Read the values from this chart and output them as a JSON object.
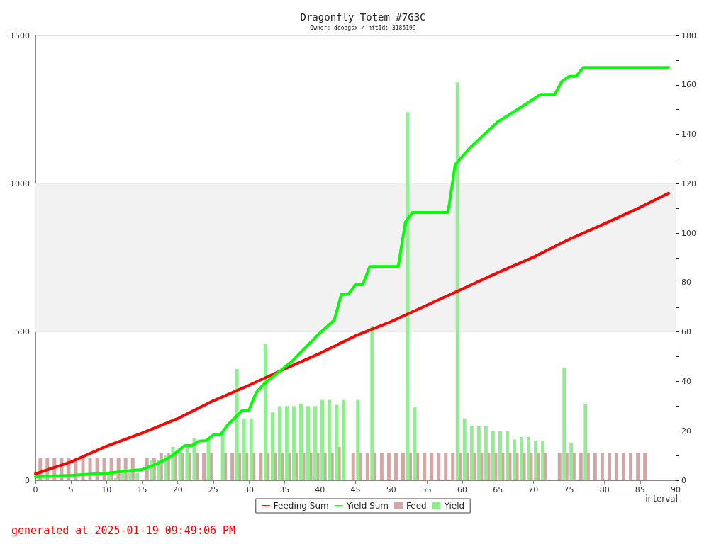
{
  "chart_data": {
    "type": "bar",
    "title": "Dragonfly Totem #7G3C",
    "subtitle": "Owner: dooogsx / nftId: 3185199",
    "xlabel": "interval",
    "x": [
      1,
      2,
      3,
      4,
      5,
      6,
      7,
      8,
      9,
      10,
      11,
      12,
      13,
      14,
      15,
      16,
      17,
      18,
      19,
      20,
      21,
      22,
      23,
      24,
      25,
      26,
      27,
      28,
      29,
      30,
      31,
      32,
      33,
      34,
      35,
      36,
      37,
      38,
      39,
      40,
      41,
      42,
      43,
      44,
      45,
      46,
      47,
      48,
      49,
      50,
      51,
      52,
      53,
      54,
      55,
      56,
      57,
      58,
      59,
      60,
      61,
      62,
      63,
      64,
      65,
      66,
      67,
      68,
      69,
      70,
      71,
      72,
      73,
      74,
      75,
      76,
      77,
      78,
      79,
      80,
      81,
      82,
      83,
      84,
      85,
      86
    ],
    "series": [
      {
        "name": "Feeding Sum",
        "type": "line",
        "color": "#ff0000",
        "x": [
          0,
          5,
          10,
          15,
          20,
          25,
          30,
          35,
          40,
          45,
          50,
          55,
          60,
          65,
          70,
          75,
          80,
          85,
          89
        ],
        "values": [
          22,
          62,
          115,
          159,
          208,
          268,
          320,
          375,
          428,
          487,
          535,
          590,
          645,
          700,
          752,
          812,
          865,
          920,
          968
        ]
      },
      {
        "name": "Yield Sum",
        "type": "line",
        "color": "#00ff00",
        "x": [
          0,
          5,
          10,
          14,
          15,
          17,
          19,
          21,
          22,
          23,
          24,
          25,
          26,
          27,
          28,
          29,
          30,
          31,
          32,
          36,
          40,
          42,
          43,
          44,
          45,
          46,
          47,
          51,
          52,
          53,
          58,
          59,
          61,
          65,
          68,
          71,
          73,
          74,
          75,
          76,
          77,
          89
        ],
        "values": [
          12,
          17,
          24,
          34,
          36,
          55,
          79,
          117,
          117,
          132,
          134,
          153,
          153,
          186,
          210,
          234,
          236,
          294,
          322,
          400,
          497,
          540,
          626,
          628,
          659,
          659,
          721,
          721,
          870,
          903,
          903,
          1064,
          1119,
          1209,
          1254,
          1301,
          1301,
          1345,
          1362,
          1362,
          1392,
          1392
        ]
      },
      {
        "name": "Feed",
        "axis": "y2",
        "color": "#d4a5a5",
        "values": [
          9,
          9,
          9,
          9,
          9,
          9,
          9,
          9,
          9,
          9,
          9,
          9,
          9,
          9,
          null,
          9,
          9,
          11,
          11,
          11,
          11,
          11,
          11,
          11,
          11,
          null,
          11,
          11,
          11,
          11,
          11,
          11,
          11,
          11,
          11,
          11,
          11,
          11,
          11,
          11,
          11,
          11,
          13.5,
          null,
          11,
          11,
          11,
          11,
          11,
          11,
          11,
          11,
          11,
          11,
          11,
          11,
          11,
          11,
          11,
          11,
          11,
          11,
          11,
          11,
          11,
          11,
          11,
          11,
          11,
          11,
          11,
          11,
          null,
          11,
          11,
          11,
          11,
          11,
          11,
          11,
          11,
          11,
          11,
          11,
          11,
          11
        ]
      },
      {
        "name": "Yield",
        "axis": "y2",
        "color": "#90ee90",
        "values": [
          null,
          null,
          null,
          null,
          null,
          null,
          null,
          null,
          null,
          2,
          1,
          3,
          3,
          3,
          null,
          8,
          8,
          10,
          13.5,
          13,
          13.5,
          17,
          null,
          17,
          null,
          20,
          null,
          45,
          25,
          25,
          null,
          55,
          27.5,
          30,
          30,
          30,
          31,
          30,
          30,
          32.5,
          32.5,
          30.5,
          32.5,
          null,
          32.5,
          null,
          62.5,
          null,
          null,
          null,
          null,
          149,
          29.5,
          null,
          null,
          null,
          null,
          null,
          161,
          25,
          22,
          22,
          22,
          20,
          20,
          20,
          16.5,
          17.5,
          17.5,
          16,
          16,
          null,
          null,
          45.5,
          15,
          null,
          31,
          null,
          null,
          null,
          null,
          null,
          null,
          null,
          null,
          null
        ]
      }
    ],
    "xlim": [
      0,
      90
    ],
    "xticks": [
      0,
      5,
      10,
      15,
      20,
      25,
      30,
      35,
      40,
      45,
      50,
      55,
      60,
      65,
      70,
      75,
      80,
      85,
      90
    ],
    "ylim": [
      0,
      1500
    ],
    "yticks": [
      0,
      500,
      1000,
      1500
    ],
    "y2lim": [
      0,
      180
    ],
    "y2ticks": [
      0,
      {
        "value": 10,
        "label": null
      },
      20,
      {
        "value": 30,
        "label": null
      },
      40,
      {
        "value": 50,
        "label": null
      },
      60,
      {
        "value": 70,
        "label": null
      },
      80,
      {
        "value": 90,
        "label": null
      },
      100,
      {
        "value": 110,
        "label": null
      },
      120,
      {
        "value": 130,
        "label": null
      },
      140,
      {
        "value": 150,
        "label": null
      },
      160,
      {
        "value": 170,
        "label": null
      },
      180
    ],
    "bands": [
      {
        "axis": "y",
        "from": 500,
        "to": 1000,
        "color": "#f2f2f2"
      }
    ],
    "grid": "y",
    "legend": "bottom",
    "marker": "none",
    "line_style": "solid",
    "annotations": [
      "generated at 2025-01-19 09:49:06 PM"
    ]
  }
}
